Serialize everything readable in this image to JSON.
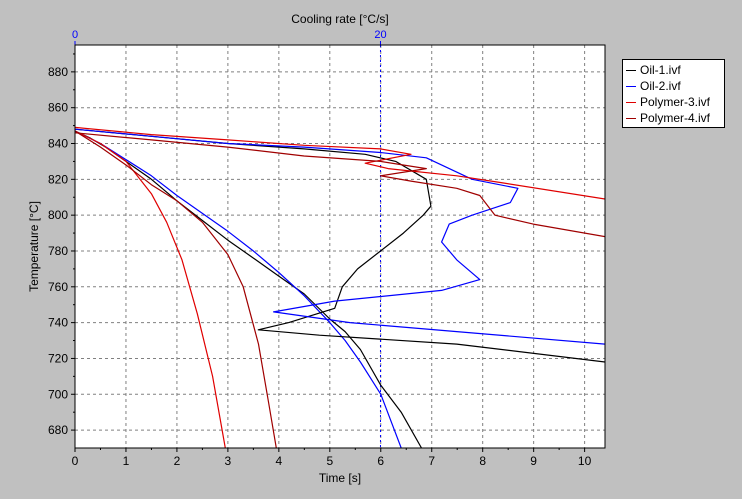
{
  "colors": {
    "background": "#c0c0c0",
    "plot_bg": "#ffffff",
    "grid": "#808080",
    "top_axis": "#0000ff"
  },
  "chart_data": {
    "type": "line",
    "xlabel": "Time [s]",
    "ylabel": "Temperature [°C]",
    "top_axis_label": "Cooling rate [°C/s]",
    "xlim": [
      0,
      10.4
    ],
    "ylim": [
      670,
      895
    ],
    "top_xlim": [
      0,
      34.7
    ],
    "x_ticks": [
      "0",
      "1",
      "2",
      "3",
      "4",
      "5",
      "6",
      "7",
      "8",
      "9",
      "10"
    ],
    "y_ticks": [
      "680",
      "700",
      "720",
      "740",
      "760",
      "780",
      "800",
      "820",
      "840",
      "860",
      "880"
    ],
    "top_ticks": [
      "0",
      "20"
    ],
    "grid": true,
    "legend_position": "top-right",
    "series": [
      {
        "name": "Oil-1.ivf",
        "color": "#000000",
        "kind": "temperature_vs_time",
        "points": [
          [
            0,
            847
          ],
          [
            0.3,
            843
          ],
          [
            0.6,
            838
          ],
          [
            1,
            830
          ],
          [
            1.5,
            820
          ],
          [
            2,
            808
          ],
          [
            2.5,
            797
          ],
          [
            3,
            786
          ],
          [
            3.5,
            776
          ],
          [
            4,
            766
          ],
          [
            4.5,
            756
          ],
          [
            5,
            742
          ],
          [
            5.3,
            735
          ],
          [
            5.6,
            725
          ],
          [
            6,
            705
          ],
          [
            6.4,
            690
          ],
          [
            6.8,
            670
          ]
        ]
      },
      {
        "name": "Oil-2.ivf",
        "color": "#0000ff",
        "kind": "temperature_vs_time",
        "points": [
          [
            0,
            847
          ],
          [
            0.5,
            840
          ],
          [
            1,
            831
          ],
          [
            1.5,
            822
          ],
          [
            2,
            811
          ],
          [
            2.5,
            801
          ],
          [
            3,
            791
          ],
          [
            3.5,
            780
          ],
          [
            4,
            768
          ],
          [
            4.5,
            755
          ],
          [
            5,
            740
          ],
          [
            5.3,
            730
          ],
          [
            5.6,
            718
          ],
          [
            6,
            700
          ],
          [
            6.4,
            670
          ]
        ]
      },
      {
        "name": "Polymer-3.ivf",
        "color": "#e00000",
        "kind": "temperature_vs_time",
        "points": [
          [
            0,
            847
          ],
          [
            0.5,
            840
          ],
          [
            1,
            830
          ],
          [
            1.5,
            812
          ],
          [
            1.8,
            796
          ],
          [
            2.1,
            775
          ],
          [
            2.4,
            745
          ],
          [
            2.7,
            710
          ],
          [
            2.95,
            670
          ]
        ]
      },
      {
        "name": "Polymer-4.ivf",
        "color": "#a00000",
        "kind": "temperature_vs_time",
        "points": [
          [
            0,
            847
          ],
          [
            0.5,
            838
          ],
          [
            1,
            828
          ],
          [
            1.5,
            817
          ],
          [
            2,
            808
          ],
          [
            2.5,
            796
          ],
          [
            3,
            778
          ],
          [
            3.3,
            760
          ],
          [
            3.6,
            728
          ],
          [
            3.8,
            695
          ],
          [
            3.95,
            670
          ]
        ]
      },
      {
        "name": "Oil-1.ivf",
        "color": "#000000",
        "kind": "cooling_rate",
        "points": [
          [
            0,
            848
          ],
          [
            5,
            844
          ],
          [
            10,
            840
          ],
          [
            15,
            837
          ],
          [
            19,
            834
          ],
          [
            21,
            830
          ],
          [
            23,
            820
          ],
          [
            23.3,
            805
          ],
          [
            22.8,
            800
          ],
          [
            21.5,
            790
          ],
          [
            20,
            780
          ],
          [
            18.5,
            770
          ],
          [
            17.5,
            760
          ],
          [
            17,
            748
          ],
          [
            14,
            740
          ],
          [
            12,
            736
          ],
          [
            16,
            733
          ],
          [
            25,
            728
          ],
          [
            34.7,
            718
          ]
        ]
      },
      {
        "name": "Oil-2.ivf",
        "color": "#0000ff",
        "kind": "cooling_rate",
        "points": [
          [
            0,
            848
          ],
          [
            5,
            844
          ],
          [
            10,
            840
          ],
          [
            15,
            838
          ],
          [
            20,
            835
          ],
          [
            23,
            832
          ],
          [
            26,
            820
          ],
          [
            29,
            815
          ],
          [
            28.5,
            807
          ],
          [
            26,
            800
          ],
          [
            24.5,
            795
          ],
          [
            24,
            785
          ],
          [
            25,
            775
          ],
          [
            26.5,
            764
          ],
          [
            24,
            758
          ],
          [
            17,
            752
          ],
          [
            13,
            746
          ],
          [
            18,
            740
          ],
          [
            25,
            735
          ],
          [
            34.7,
            728
          ]
        ]
      },
      {
        "name": "Polymer-3.ivf",
        "color": "#e00000",
        "kind": "cooling_rate",
        "points": [
          [
            0,
            849
          ],
          [
            5,
            845
          ],
          [
            10,
            842
          ],
          [
            15,
            839
          ],
          [
            20,
            837
          ],
          [
            22,
            834
          ],
          [
            19,
            829
          ],
          [
            20.5,
            826
          ],
          [
            25,
            822
          ],
          [
            28,
            818
          ],
          [
            34.7,
            809
          ]
        ]
      },
      {
        "name": "Polymer-4.ivf",
        "color": "#a00000",
        "kind": "cooling_rate",
        "points": [
          [
            0,
            846
          ],
          [
            5,
            842
          ],
          [
            10,
            838
          ],
          [
            15,
            833
          ],
          [
            20,
            830
          ],
          [
            23,
            826
          ],
          [
            20,
            822
          ],
          [
            22,
            819
          ],
          [
            25,
            815
          ],
          [
            26.5,
            811
          ],
          [
            27.5,
            800
          ],
          [
            30,
            795
          ],
          [
            34.7,
            788
          ]
        ]
      }
    ]
  }
}
